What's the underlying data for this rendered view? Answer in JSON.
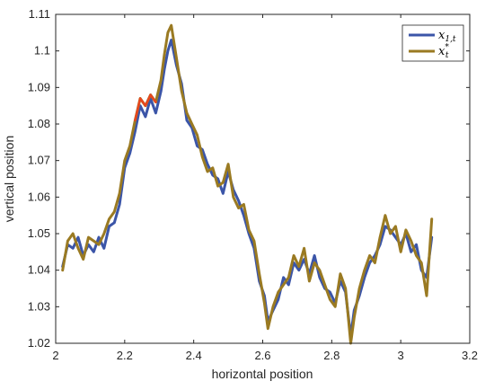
{
  "chart_data": {
    "type": "line",
    "title": "",
    "xlabel": "horizontal  position",
    "ylabel": "vertical position",
    "xlim": [
      2,
      3.2
    ],
    "ylim": [
      1.02,
      1.11
    ],
    "xticks": [
      "2",
      "2.2",
      "2.4",
      "2.6",
      "2.8",
      "3",
      "3.2"
    ],
    "yticks": [
      "1.02",
      "1.03",
      "1.04",
      "1.05",
      "1.06",
      "1.07",
      "1.08",
      "1.09",
      "1.1",
      "1.11"
    ],
    "grid": false,
    "legend_position": "top-right",
    "legend": [
      {
        "base": "x",
        "sub": "1,t",
        "sup": ""
      },
      {
        "base": "x",
        "sub": "t",
        "sup": "*"
      }
    ],
    "colors": {
      "series1": "#3b55a8",
      "series2": "#9a7a22",
      "accent": "#e8461e"
    },
    "series": [
      {
        "name": "x1,t",
        "x": [
          2.02,
          2.035,
          2.05,
          2.065,
          2.08,
          2.095,
          2.11,
          2.125,
          2.14,
          2.155,
          2.17,
          2.185,
          2.2,
          2.215,
          2.23,
          2.245,
          2.26,
          2.275,
          2.29,
          2.305,
          2.315,
          2.325,
          2.335,
          2.35,
          2.365,
          2.38,
          2.395,
          2.41,
          2.425,
          2.44,
          2.455,
          2.47,
          2.485,
          2.5,
          2.515,
          2.53,
          2.545,
          2.56,
          2.575,
          2.59,
          2.605,
          2.615,
          2.63,
          2.645,
          2.66,
          2.675,
          2.69,
          2.705,
          2.72,
          2.735,
          2.75,
          2.765,
          2.78,
          2.795,
          2.81,
          2.825,
          2.84,
          2.855,
          2.865,
          2.88,
          2.895,
          2.91,
          2.925,
          2.94,
          2.955,
          2.97,
          2.985,
          3.0,
          3.015,
          3.03,
          3.045,
          3.06,
          3.075,
          3.09
        ],
        "y": [
          1.041,
          1.047,
          1.046,
          1.049,
          1.044,
          1.047,
          1.045,
          1.049,
          1.046,
          1.052,
          1.053,
          1.058,
          1.068,
          1.072,
          1.078,
          1.085,
          1.082,
          1.087,
          1.083,
          1.089,
          1.095,
          1.1,
          1.103,
          1.096,
          1.091,
          1.081,
          1.079,
          1.074,
          1.073,
          1.069,
          1.066,
          1.065,
          1.061,
          1.067,
          1.062,
          1.059,
          1.055,
          1.05,
          1.046,
          1.037,
          1.033,
          1.026,
          1.029,
          1.032,
          1.038,
          1.036,
          1.042,
          1.04,
          1.043,
          1.039,
          1.044,
          1.038,
          1.035,
          1.034,
          1.031,
          1.037,
          1.034,
          1.022,
          1.029,
          1.033,
          1.038,
          1.042,
          1.044,
          1.047,
          1.052,
          1.051,
          1.049,
          1.047,
          1.05,
          1.045,
          1.047,
          1.04,
          1.038,
          1.049
        ]
      },
      {
        "name": "xt*",
        "x": [
          2.02,
          2.035,
          2.05,
          2.065,
          2.08,
          2.095,
          2.11,
          2.125,
          2.14,
          2.155,
          2.17,
          2.185,
          2.2,
          2.215,
          2.23,
          2.245,
          2.26,
          2.275,
          2.29,
          2.305,
          2.315,
          2.325,
          2.335,
          2.35,
          2.365,
          2.38,
          2.395,
          2.41,
          2.425,
          2.44,
          2.455,
          2.47,
          2.485,
          2.5,
          2.515,
          2.53,
          2.545,
          2.56,
          2.575,
          2.59,
          2.605,
          2.615,
          2.63,
          2.645,
          2.66,
          2.675,
          2.69,
          2.705,
          2.72,
          2.735,
          2.75,
          2.765,
          2.78,
          2.795,
          2.81,
          2.825,
          2.84,
          2.855,
          2.865,
          2.88,
          2.895,
          2.91,
          2.925,
          2.94,
          2.955,
          2.97,
          2.985,
          3.0,
          3.015,
          3.03,
          3.045,
          3.06,
          3.075,
          3.09
        ],
        "y": [
          1.04,
          1.048,
          1.05,
          1.046,
          1.043,
          1.049,
          1.048,
          1.047,
          1.05,
          1.054,
          1.056,
          1.061,
          1.07,
          1.074,
          1.081,
          1.087,
          1.085,
          1.088,
          1.086,
          1.092,
          1.099,
          1.105,
          1.107,
          1.098,
          1.089,
          1.083,
          1.08,
          1.077,
          1.071,
          1.067,
          1.068,
          1.063,
          1.064,
          1.069,
          1.06,
          1.057,
          1.058,
          1.051,
          1.048,
          1.039,
          1.031,
          1.024,
          1.03,
          1.034,
          1.036,
          1.038,
          1.044,
          1.041,
          1.046,
          1.037,
          1.042,
          1.04,
          1.036,
          1.032,
          1.03,
          1.039,
          1.035,
          1.02,
          1.027,
          1.035,
          1.04,
          1.044,
          1.042,
          1.049,
          1.055,
          1.05,
          1.052,
          1.045,
          1.051,
          1.048,
          1.044,
          1.042,
          1.033,
          1.054
        ]
      }
    ]
  }
}
